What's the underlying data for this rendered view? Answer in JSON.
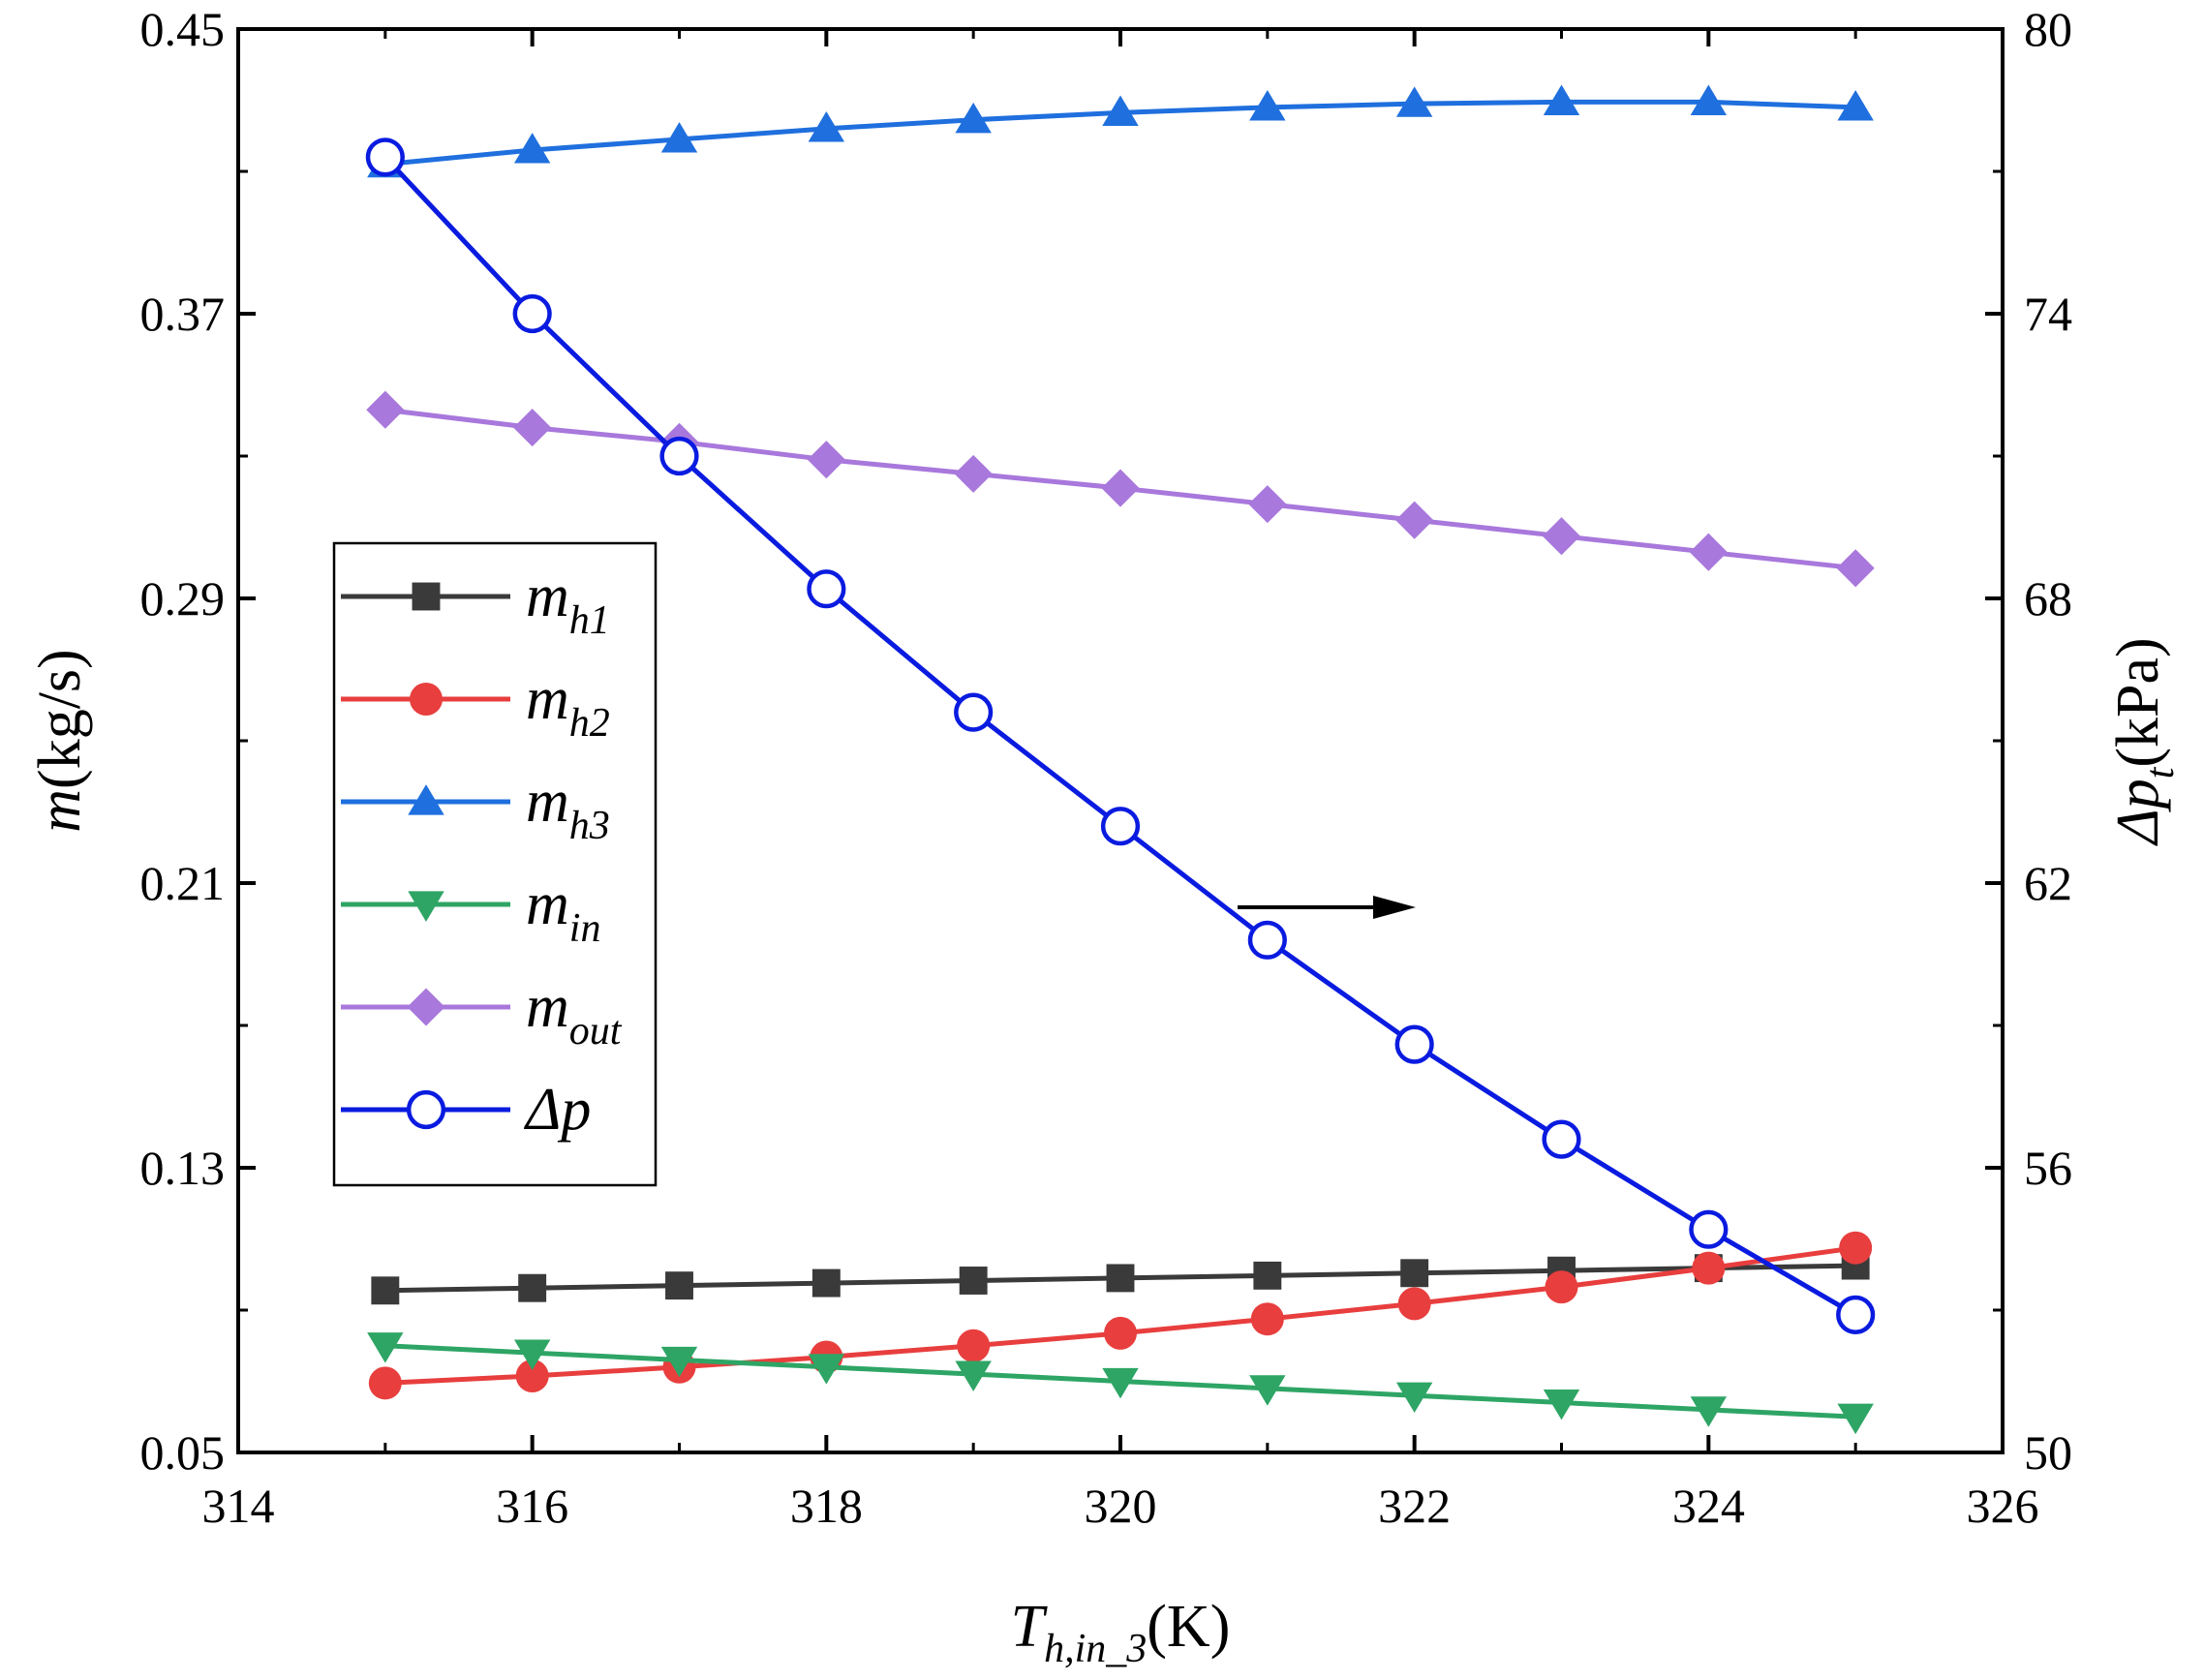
{
  "chart_data": {
    "type": "line",
    "xlabel": {
      "main": "T",
      "sub": "h,in_3",
      "unit": "(K)"
    },
    "ylabel_left": {
      "main": "m",
      "unit": "(kg/s)"
    },
    "ylabel_right": {
      "prefix": "Δp",
      "sub": "t",
      "unit": "(kPa)"
    },
    "x": [
      315,
      316,
      317,
      318,
      319,
      320,
      321,
      322,
      323,
      324,
      325
    ],
    "xlim": [
      314,
      326
    ],
    "xticks": [
      "314",
      "316",
      "318",
      "320",
      "322",
      "324",
      "326"
    ],
    "ylim_left": [
      0.05,
      0.45
    ],
    "yticks_left": [
      "0.05",
      "0.13",
      "0.21",
      "0.29",
      "0.37",
      "0.45"
    ],
    "ylim_right": [
      50,
      80
    ],
    "yticks_right": [
      "50",
      "56",
      "62",
      "68",
      "74",
      "80"
    ],
    "series": [
      {
        "name": "m",
        "sub": "h1",
        "axis": "left",
        "color": "#3a3a3a",
        "marker": "square",
        "values": [
          0.0955,
          0.0962,
          0.0969,
          0.0976,
          0.0983,
          0.099,
          0.0997,
          0.1004,
          0.1011,
          0.1018,
          0.1025
        ]
      },
      {
        "name": "m",
        "sub": "h2",
        "axis": "left",
        "color": "#e83e3e",
        "marker": "circle",
        "values": [
          0.0695,
          0.0715,
          0.074,
          0.0768,
          0.08,
          0.0835,
          0.0875,
          0.0918,
          0.0965,
          0.1018,
          0.1075
        ]
      },
      {
        "name": "m",
        "sub": "h3",
        "axis": "left",
        "color": "#1f6fde",
        "marker": "triangle-up",
        "values": [
          0.412,
          0.416,
          0.419,
          0.422,
          0.4245,
          0.4265,
          0.428,
          0.429,
          0.4295,
          0.4295,
          0.428
        ]
      },
      {
        "name": "m",
        "sub": "in",
        "axis": "left",
        "color": "#2ea565",
        "marker": "triangle-down",
        "values": [
          0.08,
          0.078,
          0.076,
          0.074,
          0.072,
          0.07,
          0.068,
          0.066,
          0.064,
          0.062,
          0.06
        ]
      },
      {
        "name": "m",
        "sub": "out",
        "axis": "left",
        "color": "#a878dc",
        "marker": "diamond",
        "values": [
          0.343,
          0.338,
          0.334,
          0.329,
          0.325,
          0.321,
          0.3165,
          0.312,
          0.3075,
          0.303,
          0.2985
        ]
      },
      {
        "name": "Δp",
        "sub": "",
        "axis": "right",
        "color": "#0a1be0",
        "marker": "open-circle",
        "values": [
          77.3,
          74.0,
          71.0,
          68.2,
          65.6,
          63.2,
          60.8,
          58.6,
          56.6,
          54.7,
          52.9
        ]
      }
    ],
    "annotation": {
      "type": "arrow",
      "direction": "right",
      "meaning": "Δp uses right axis"
    },
    "legend_position": "center-left"
  }
}
